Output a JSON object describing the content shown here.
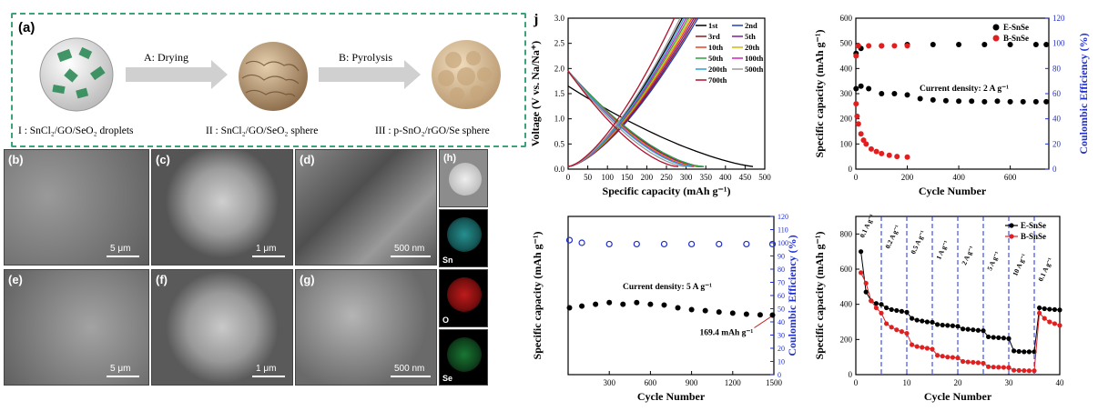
{
  "schematic": {
    "label": "(a)",
    "step_a": "A:  Drying",
    "step_b": "B: Pyrolysis",
    "cap1": "I : SnCl₂/GO/SeO₂ droplets",
    "cap2": "II : SnCl₂/GO/SeO₂ sphere",
    "cap3": "III : p-SnO₂/rGO/Se sphere"
  },
  "micrographs": [
    {
      "label": "(b)",
      "scale": "5 μm"
    },
    {
      "label": "(c)",
      "scale": "1 μm"
    },
    {
      "label": "(d)",
      "scale": "500 nm"
    },
    {
      "label": "(e)",
      "scale": "5 μm"
    },
    {
      "label": "(f)",
      "scale": "1 μm"
    },
    {
      "label": "(g)",
      "scale": "500 nm"
    }
  ],
  "eds": {
    "label": "(h)",
    "maps": [
      {
        "element": "Sn",
        "color": "#2fb3b3"
      },
      {
        "element": "O",
        "color": "#c81414"
      },
      {
        "element": "Se",
        "color": "#1e8c3c"
      }
    ]
  },
  "chart_data": [
    {
      "panel": "j",
      "type": "line",
      "xlabel": "Specific capacity (mAh g⁻¹)",
      "ylabel": "Voltage (V vs. Na/Na⁺)",
      "xlim": [
        0,
        500
      ],
      "ylim": [
        0,
        3.0
      ],
      "xticks": [
        "0",
        "50",
        "100",
        "150",
        "200",
        "250",
        "300",
        "350",
        "400",
        "450",
        "500"
      ],
      "yticks": [
        "0.0",
        "0.5",
        "1.0",
        "1.5",
        "2.0",
        "2.5",
        "3.0"
      ],
      "legend_position": "top-right",
      "series": [
        {
          "name": "1st",
          "color": "#000000",
          "discharge_end": 470,
          "charge_end": 290,
          "start_v": 1.2
        },
        {
          "name": "2nd",
          "color": "#1f3fbf",
          "discharge_end": 345,
          "charge_end": 330,
          "start_v": 1.9
        },
        {
          "name": "3rd",
          "color": "#8b1a1a",
          "discharge_end": 340,
          "charge_end": 325,
          "start_v": 1.9
        },
        {
          "name": "5th",
          "color": "#7a1f9a",
          "discharge_end": 335,
          "charge_end": 320,
          "start_v": 1.9
        },
        {
          "name": "10th",
          "color": "#e8421f",
          "discharge_end": 330,
          "charge_end": 315,
          "start_v": 1.9
        },
        {
          "name": "20th",
          "color": "#d4b800",
          "discharge_end": 325,
          "charge_end": 310,
          "start_v": 1.9
        },
        {
          "name": "50th",
          "color": "#2fa040",
          "discharge_end": 345,
          "charge_end": 305,
          "start_v": 1.9
        },
        {
          "name": "100th",
          "color": "#d020c0",
          "discharge_end": 320,
          "charge_end": 300,
          "start_v": 1.9
        },
        {
          "name": "200th",
          "color": "#29a0d8",
          "discharge_end": 315,
          "charge_end": 295,
          "start_v": 1.9
        },
        {
          "name": "500th",
          "color": "#9a9a9a",
          "discharge_end": 300,
          "charge_end": 285,
          "start_v": 1.9
        },
        {
          "name": "700th",
          "color": "#b0102a",
          "discharge_end": 280,
          "charge_end": 270,
          "start_v": 1.9
        }
      ]
    },
    {
      "panel": "cycling_2A",
      "type": "scatter",
      "xlabel": "Cycle Number",
      "ylabel": "Specific capacity (mAh g⁻¹)",
      "y2label": "Coulombic Efficiency (%)",
      "xlim": [
        0,
        750
      ],
      "ylim": [
        0,
        600
      ],
      "y2lim": [
        0,
        120
      ],
      "xticks": [
        "0",
        "200",
        "400",
        "600"
      ],
      "yticks": [
        "0",
        "100",
        "200",
        "300",
        "400",
        "500",
        "600"
      ],
      "y2ticks": [
        "0",
        "20",
        "40",
        "60",
        "80",
        "100",
        "120"
      ],
      "annotation": "Current density: 2 A g⁻¹",
      "legend_position": "top-right",
      "series": [
        {
          "name": "E-SnSe",
          "color": "#000000",
          "capacity": [
            [
              1,
              320
            ],
            [
              20,
              330
            ],
            [
              50,
              320
            ],
            [
              100,
              300
            ],
            [
              150,
              300
            ],
            [
              200,
              295
            ],
            [
              250,
              280
            ],
            [
              300,
              275
            ],
            [
              350,
              272
            ],
            [
              400,
              270
            ],
            [
              450,
              270
            ],
            [
              500,
              268
            ],
            [
              550,
              270
            ],
            [
              600,
              268
            ],
            [
              650,
              268
            ],
            [
              700,
              268
            ],
            [
              740,
              268
            ]
          ],
          "ce": [
            [
              1,
              92
            ],
            [
              20,
              96
            ],
            [
              100,
              98
            ],
            [
              200,
              99
            ],
            [
              300,
              99
            ],
            [
              400,
              99
            ],
            [
              500,
              99
            ],
            [
              600,
              99
            ],
            [
              700,
              99
            ],
            [
              740,
              99
            ]
          ]
        },
        {
          "name": "B-SnSe",
          "color": "#e02020",
          "capacity": [
            [
              1,
              260
            ],
            [
              5,
              210
            ],
            [
              10,
              180
            ],
            [
              20,
              140
            ],
            [
              30,
              115
            ],
            [
              40,
              100
            ],
            [
              60,
              80
            ],
            [
              80,
              70
            ],
            [
              100,
              62
            ],
            [
              130,
              55
            ],
            [
              160,
              50
            ],
            [
              200,
              48
            ]
          ],
          "ce": [
            [
              1,
              90
            ],
            [
              10,
              98
            ],
            [
              50,
              98
            ],
            [
              100,
              98
            ],
            [
              150,
              98
            ],
            [
              200,
              98
            ]
          ]
        }
      ]
    },
    {
      "panel": "cycling_5A",
      "type": "scatter",
      "xlabel": "Cycle Number",
      "ylabel": "Specific capacity (mAh g⁻¹)",
      "y2label": "Coulombic Efficiency (%)",
      "xlim": [
        0,
        1500
      ],
      "ylim": [
        0,
        450
      ],
      "y2lim": [
        0,
        120
      ],
      "xticks": [
        "300",
        "600",
        "900",
        "1200",
        "1500"
      ],
      "y2ticks": [
        "0",
        "10",
        "20",
        "30",
        "40",
        "50",
        "60",
        "70",
        "80",
        "90",
        "100",
        "110",
        "120"
      ],
      "annotation": "Current density: 5 A g⁻¹",
      "value_label": "169.4 mAh g⁻¹",
      "series": [
        {
          "name": "capacity",
          "color": "#000000",
          "points": [
            [
              10,
              190
            ],
            [
              100,
              195
            ],
            [
              200,
              200
            ],
            [
              300,
              205
            ],
            [
              400,
              200
            ],
            [
              500,
              205
            ],
            [
              600,
              200
            ],
            [
              700,
              198
            ],
            [
              800,
              190
            ],
            [
              900,
              185
            ],
            [
              1000,
              182
            ],
            [
              1100,
              178
            ],
            [
              1200,
              175
            ],
            [
              1300,
              172
            ],
            [
              1400,
              170
            ],
            [
              1490,
              169.4
            ]
          ]
        },
        {
          "name": "coulombic efficiency",
          "color": "#1f2fd0",
          "points": [
            [
              10,
              102
            ],
            [
              100,
              100
            ],
            [
              300,
              99
            ],
            [
              500,
              99
            ],
            [
              700,
              99
            ],
            [
              900,
              99
            ],
            [
              1100,
              99
            ],
            [
              1300,
              99
            ],
            [
              1490,
              99
            ]
          ]
        }
      ]
    },
    {
      "panel": "rate",
      "type": "line",
      "xlabel": "Cycle Number",
      "ylabel": "Specific capacity (mAh g⁻¹)",
      "xlim": [
        0,
        40
      ],
      "ylim": [
        0,
        900
      ],
      "xticks": [
        "0",
        "10",
        "20",
        "30",
        "40"
      ],
      "yticks": [
        "0",
        "200",
        "400",
        "600",
        "800"
      ],
      "rate_labels": [
        "0.1 A g⁻¹",
        "0.2 A g⁻¹",
        "0.5 A g⁻¹",
        "1 A g⁻¹",
        "2 A g⁻¹",
        "5 A g⁻¹",
        "10 A g⁻¹",
        "0.1 A g⁻¹"
      ],
      "legend_position": "top-right",
      "series": [
        {
          "name": "E-SnSe",
          "color": "#000000",
          "points": [
            [
              1,
              700
            ],
            [
              2,
              470
            ],
            [
              3,
              420
            ],
            [
              4,
              405
            ],
            [
              5,
              400
            ],
            [
              6,
              380
            ],
            [
              7,
              370
            ],
            [
              8,
              365
            ],
            [
              9,
              360
            ],
            [
              10,
              355
            ],
            [
              11,
              320
            ],
            [
              12,
              310
            ],
            [
              13,
              305
            ],
            [
              14,
              300
            ],
            [
              15,
              298
            ],
            [
              16,
              285
            ],
            [
              17,
              282
            ],
            [
              18,
              280
            ],
            [
              19,
              278
            ],
            [
              20,
              275
            ],
            [
              21,
              260
            ],
            [
              22,
              258
            ],
            [
              23,
              255
            ],
            [
              24,
              252
            ],
            [
              25,
              250
            ],
            [
              26,
              215
            ],
            [
              27,
              212
            ],
            [
              28,
              210
            ],
            [
              29,
              208
            ],
            [
              30,
              205
            ],
            [
              31,
              135
            ],
            [
              32,
              132
            ],
            [
              33,
              130
            ],
            [
              34,
              130
            ],
            [
              35,
              130
            ],
            [
              36,
              380
            ],
            [
              37,
              375
            ],
            [
              38,
              372
            ],
            [
              39,
              370
            ],
            [
              40,
              368
            ]
          ]
        },
        {
          "name": "B-SnSe",
          "color": "#e02020",
          "points": [
            [
              1,
              580
            ],
            [
              2,
              520
            ],
            [
              3,
              420
            ],
            [
              4,
              380
            ],
            [
              5,
              350
            ],
            [
              6,
              290
            ],
            [
              7,
              270
            ],
            [
              8,
              255
            ],
            [
              9,
              245
            ],
            [
              10,
              235
            ],
            [
              11,
              170
            ],
            [
              12,
              160
            ],
            [
              13,
              155
            ],
            [
              14,
              150
            ],
            [
              15,
              145
            ],
            [
              16,
              110
            ],
            [
              17,
              105
            ],
            [
              18,
              100
            ],
            [
              19,
              98
            ],
            [
              20,
              95
            ],
            [
              21,
              75
            ],
            [
              22,
              72
            ],
            [
              23,
              70
            ],
            [
              24,
              68
            ],
            [
              25,
              65
            ],
            [
              26,
              45
            ],
            [
              27,
              43
            ],
            [
              28,
              42
            ],
            [
              29,
              41
            ],
            [
              30,
              40
            ],
            [
              31,
              25
            ],
            [
              32,
              24
            ],
            [
              33,
              23
            ],
            [
              34,
              22
            ],
            [
              35,
              22
            ],
            [
              36,
              350
            ],
            [
              37,
              320
            ],
            [
              38,
              300
            ],
            [
              39,
              290
            ],
            [
              40,
              280
            ]
          ]
        }
      ]
    }
  ]
}
